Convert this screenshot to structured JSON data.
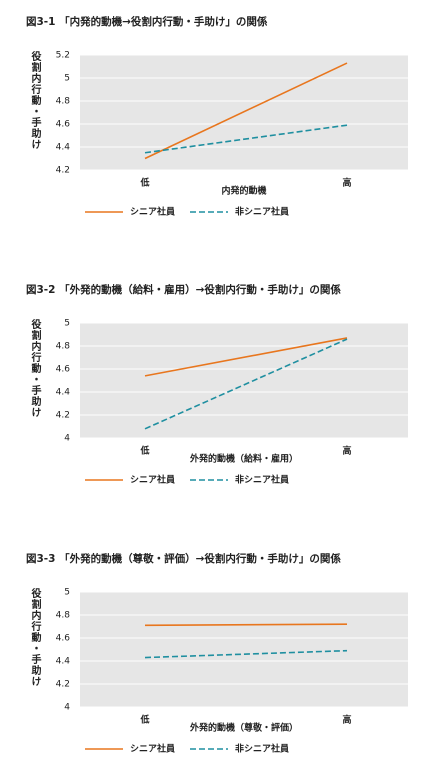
{
  "chart_data": [
    {
      "type": "line",
      "title": "図3-1 「内発的動機→役割内行動・手助け」の関係",
      "y_label": "役割内行動・手助け",
      "x_label": "内発的動機",
      "categories": [
        "低",
        "高"
      ],
      "ylim": [
        4.2,
        5.2
      ],
      "yticks": [
        4.2,
        4.4,
        4.6,
        4.8,
        5,
        5.2
      ],
      "grid": true,
      "series": [
        {
          "name": "シニア社員",
          "color": "#e8761e",
          "style": "solid",
          "values": [
            4.3,
            5.13
          ]
        },
        {
          "name": "非シニア社員",
          "color": "#1f8fa0",
          "style": "dashed",
          "values": [
            4.35,
            4.59
          ]
        }
      ]
    },
    {
      "type": "line",
      "title": "図3-2 「外発的動機（給料・雇用）→役割内行動・手助け」の関係",
      "y_label": "役割内行動・手助け",
      "x_label": "外発的動機（給料・雇用）",
      "categories": [
        "低",
        "高"
      ],
      "ylim": [
        4,
        5
      ],
      "yticks": [
        4,
        4.2,
        4.4,
        4.6,
        4.8,
        5
      ],
      "grid": true,
      "series": [
        {
          "name": "シニア社員",
          "color": "#e8761e",
          "style": "solid",
          "values": [
            4.54,
            4.87
          ]
        },
        {
          "name": "非シニア社員",
          "color": "#1f8fa0",
          "style": "dashed",
          "values": [
            4.08,
            4.86
          ]
        }
      ]
    },
    {
      "type": "line",
      "title": "図3-3 「外発的動機（尊敬・評価）→役割内行動・手助け」の関係",
      "y_label": "役割内行動・手助け",
      "x_label": "外発的動機（尊敬・評価）",
      "categories": [
        "低",
        "高"
      ],
      "ylim": [
        4,
        5
      ],
      "yticks": [
        4,
        4.2,
        4.4,
        4.6,
        4.8,
        5
      ],
      "grid": true,
      "series": [
        {
          "name": "シニア社員",
          "color": "#e8761e",
          "style": "solid",
          "values": [
            4.71,
            4.72
          ]
        },
        {
          "name": "非シニア社員",
          "color": "#1f8fa0",
          "style": "dashed",
          "values": [
            4.43,
            4.49
          ]
        }
      ]
    }
  ]
}
